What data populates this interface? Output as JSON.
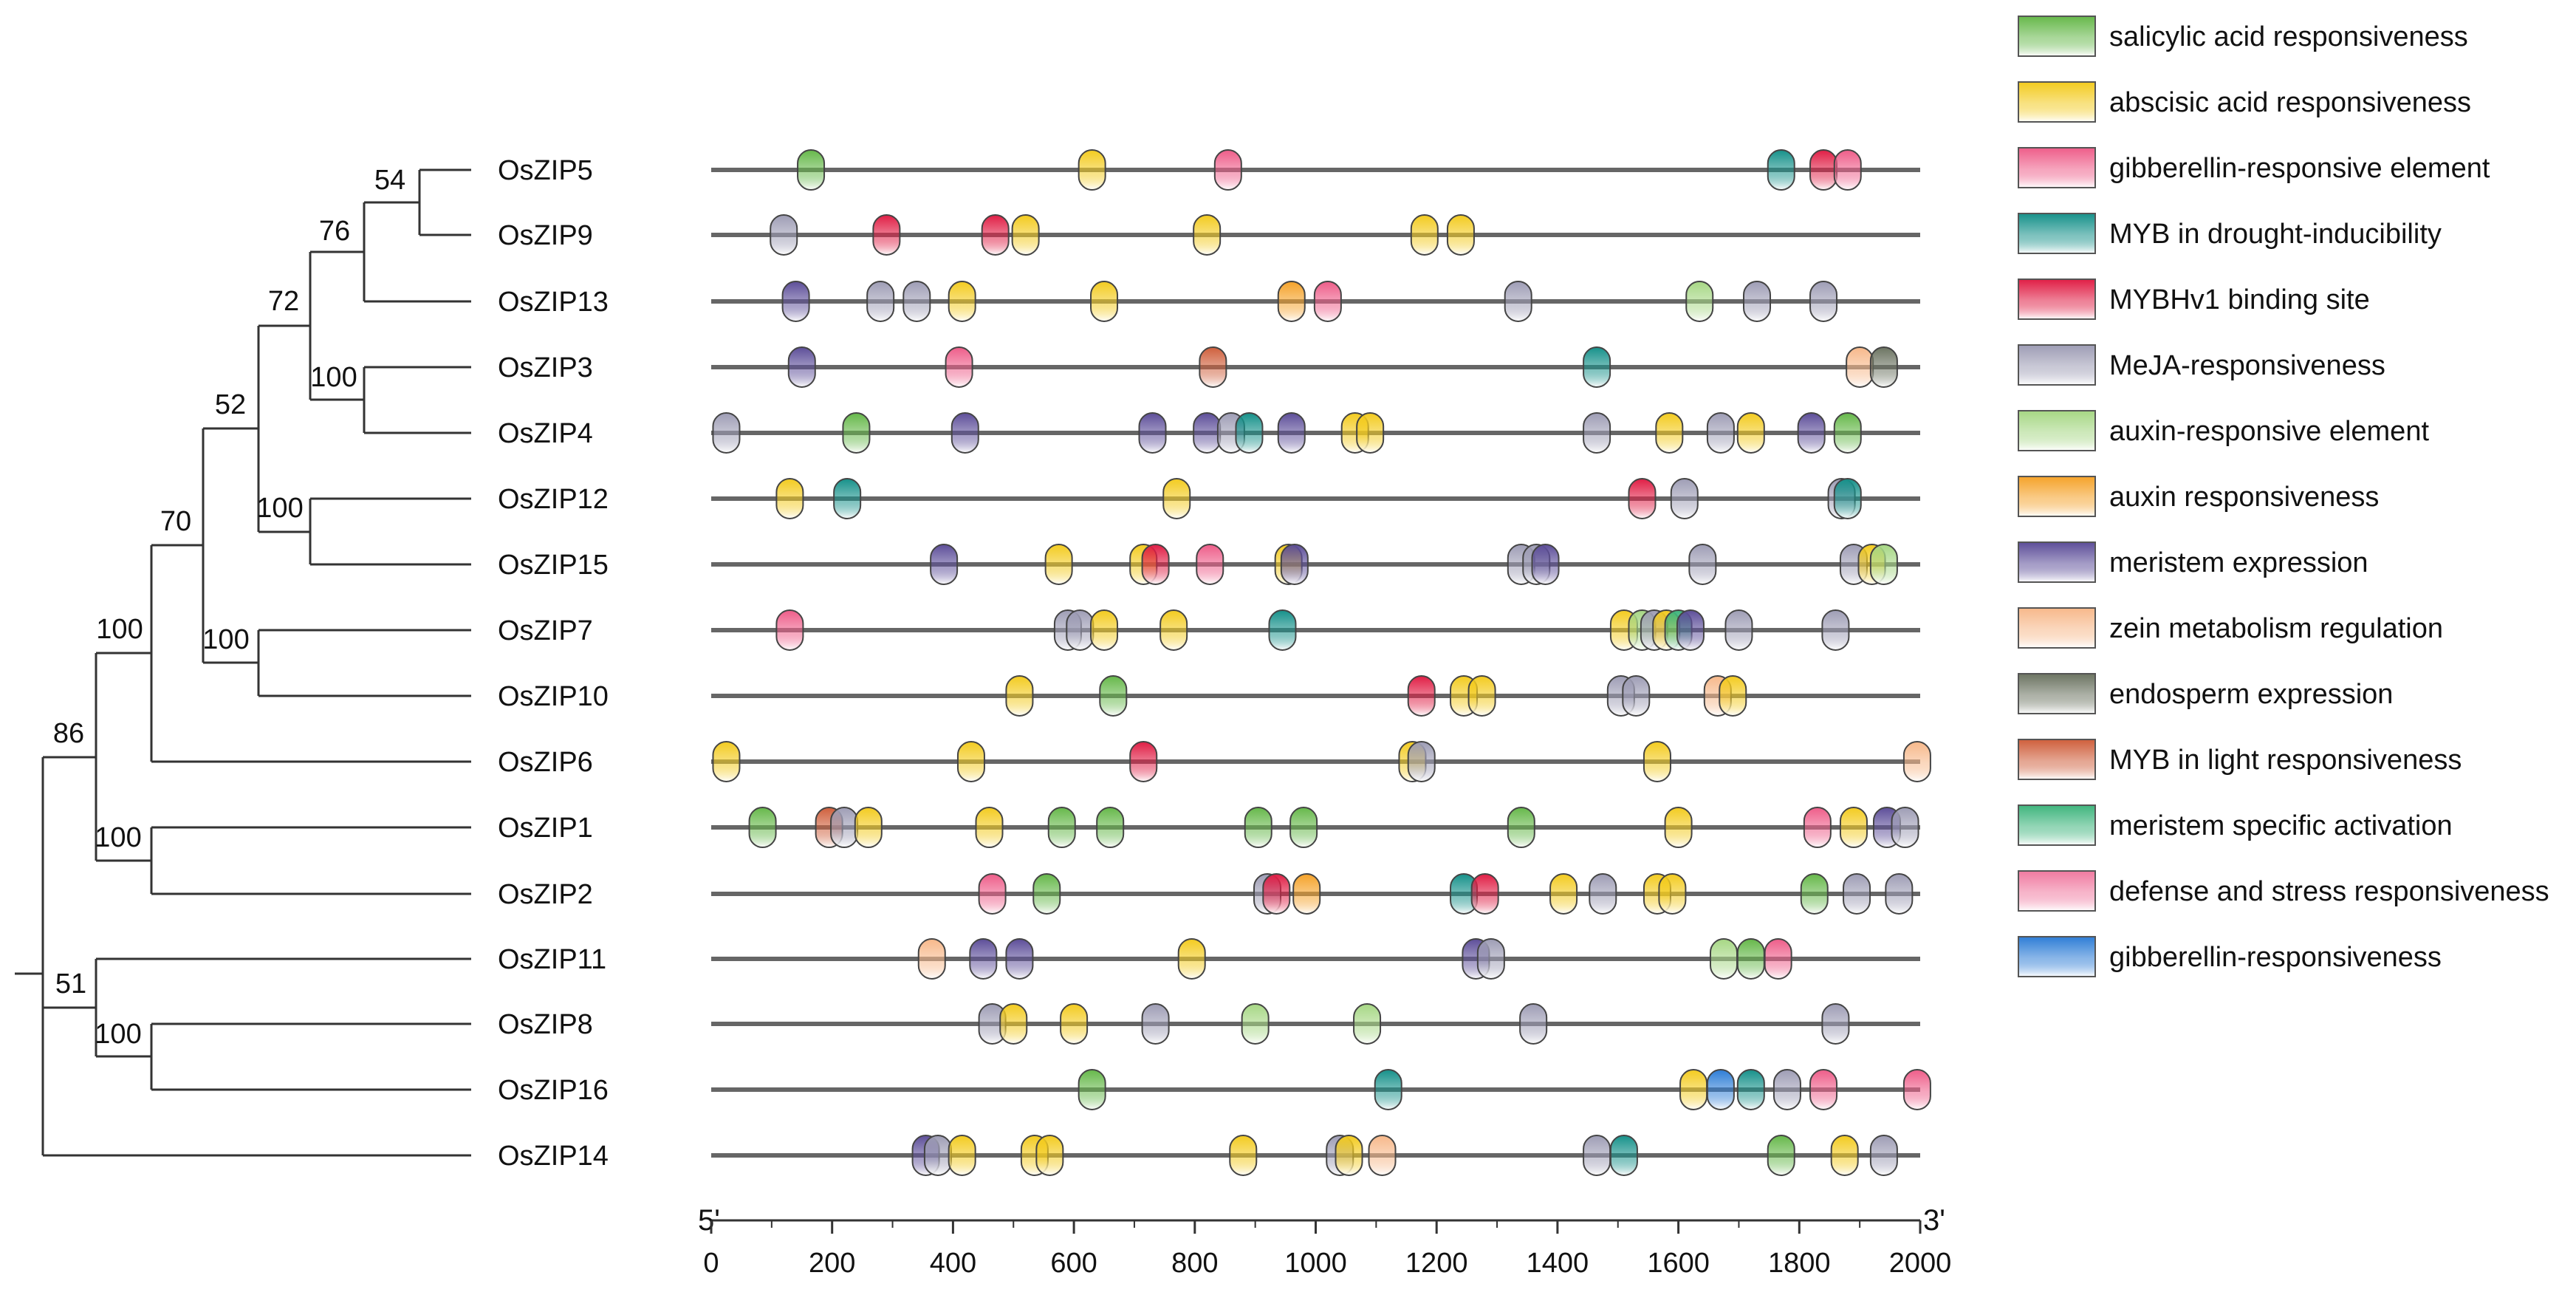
{
  "genes": [
    "OsZIP5",
    "OsZIP9",
    "OsZIP13",
    "OsZIP3",
    "OsZIP4",
    "OsZIP12",
    "OsZIP15",
    "OsZIP7",
    "OsZIP10",
    "OsZIP6",
    "OsZIP1",
    "OsZIP2",
    "OsZIP11",
    "OsZIP8",
    "OsZIP16",
    "OsZIP14"
  ],
  "bootstrap": {
    "OsZIP5_OsZIP9": "54",
    "with_OsZIP13": "76",
    "OsZIP3_OsZIP4": "100",
    "group_5_9_13_3_4": "72",
    "OsZIP12_OsZIP15": "100",
    "upper_group": "52",
    "OsZIP7_OsZIP10": "100",
    "with_7_10": "70",
    "with_OsZIP6": "100",
    "OsZIP1_OsZIP2": "100",
    "ZIP_main": "86",
    "OsZIP8_OsZIP16": "100",
    "with_OsZIP11": "51"
  },
  "axis": {
    "start_label": "5'",
    "end_label": "3'",
    "min": 0,
    "max": 2000,
    "ticks": [
      "0",
      "200",
      "400",
      "600",
      "800",
      "1000",
      "1200",
      "1400",
      "1600",
      "1800",
      "2000"
    ]
  },
  "legend": [
    {
      "key": "sal",
      "label": "salicylic acid responsiveness",
      "color": "#66b84a"
    },
    {
      "key": "aba",
      "label": "abscisic acid responsiveness",
      "color": "#f3cb1f"
    },
    {
      "key": "gib",
      "label": "gibberellin-responsive element",
      "color": "#ee5d89"
    },
    {
      "key": "myb",
      "label": "MYB in drought-inducibility",
      "color": "#16918a"
    },
    {
      "key": "mybh",
      "label": "MYBHv1 binding site",
      "color": "#e01e45"
    },
    {
      "key": "meja",
      "label": "MeJA-responsiveness",
      "color": "#9e9db5"
    },
    {
      "key": "aux",
      "label": "auxin-responsive element",
      "color": "#a6d784"
    },
    {
      "key": "auxr",
      "label": "auxin responsiveness",
      "color": "#f5a229"
    },
    {
      "key": "mer",
      "label": "meristem expression",
      "color": "#5d4e99"
    },
    {
      "key": "zein",
      "label": "zein metabolism regulation",
      "color": "#f7b88a"
    },
    {
      "key": "endo",
      "label": "endosperm expression",
      "color": "#6c7462"
    },
    {
      "key": "mybl",
      "label": "MYB in light responsiveness",
      "color": "#cf5f3c"
    },
    {
      "key": "msa",
      "label": "meristem specific activation",
      "color": "#3fb57d"
    },
    {
      "key": "def",
      "label": "defense and stress responsiveness",
      "color": "#f07aa0"
    },
    {
      "key": "gibr",
      "label": "gibberellin-responsiveness",
      "color": "#2e7dd6"
    }
  ],
  "elements": {
    "OsZIP5": [
      [
        165,
        "sal"
      ],
      [
        630,
        "aba"
      ],
      [
        855,
        "gib"
      ],
      [
        1770,
        "myb"
      ],
      [
        1840,
        "mybh"
      ],
      [
        1880,
        "gib"
      ]
    ],
    "OsZIP9": [
      [
        120,
        "meja"
      ],
      [
        290,
        "mybh"
      ],
      [
        470,
        "mybh"
      ],
      [
        520,
        "aba"
      ],
      [
        820,
        "aba"
      ],
      [
        1180,
        "aba"
      ],
      [
        1240,
        "aba"
      ]
    ],
    "OsZIP13": [
      [
        140,
        "mer"
      ],
      [
        280,
        "meja"
      ],
      [
        340,
        "meja"
      ],
      [
        415,
        "aba"
      ],
      [
        650,
        "aba"
      ],
      [
        960,
        "auxr"
      ],
      [
        1020,
        "gib"
      ],
      [
        1335,
        "meja"
      ],
      [
        1635,
        "aux"
      ],
      [
        1730,
        "meja"
      ],
      [
        1840,
        "meja"
      ]
    ],
    "OsZIP3": [
      [
        150,
        "mer"
      ],
      [
        410,
        "gib"
      ],
      [
        830,
        "mybl"
      ],
      [
        1465,
        "myb"
      ],
      [
        1900,
        "zein"
      ],
      [
        1940,
        "endo"
      ]
    ],
    "OsZIP4": [
      [
        25,
        "meja"
      ],
      [
        240,
        "sal"
      ],
      [
        420,
        "mer"
      ],
      [
        730,
        "mer"
      ],
      [
        820,
        "mer"
      ],
      [
        860,
        "meja"
      ],
      [
        890,
        "myb"
      ],
      [
        960,
        "mer"
      ],
      [
        1065,
        "aba"
      ],
      [
        1090,
        "aba"
      ],
      [
        1465,
        "meja"
      ],
      [
        1585,
        "aba"
      ],
      [
        1670,
        "meja"
      ],
      [
        1720,
        "aba"
      ],
      [
        1820,
        "mer"
      ],
      [
        1880,
        "sal"
      ]
    ],
    "OsZIP12": [
      [
        130,
        "aba"
      ],
      [
        225,
        "myb"
      ],
      [
        770,
        "aba"
      ],
      [
        1540,
        "mybh"
      ],
      [
        1610,
        "meja"
      ],
      [
        1870,
        "meja"
      ],
      [
        1880,
        "myb"
      ]
    ],
    "OsZIP15": [
      [
        385,
        "mer"
      ],
      [
        575,
        "aba"
      ],
      [
        715,
        "aba"
      ],
      [
        735,
        "mybh"
      ],
      [
        825,
        "gib"
      ],
      [
        955,
        "aba"
      ],
      [
        965,
        "mer"
      ],
      [
        1340,
        "meja"
      ],
      [
        1365,
        "meja"
      ],
      [
        1380,
        "mer"
      ],
      [
        1640,
        "meja"
      ],
      [
        1890,
        "meja"
      ],
      [
        1920,
        "aba"
      ],
      [
        1940,
        "aux"
      ]
    ],
    "OsZIP7": [
      [
        130,
        "gib"
      ],
      [
        590,
        "meja"
      ],
      [
        610,
        "meja"
      ],
      [
        650,
        "aba"
      ],
      [
        765,
        "aba"
      ],
      [
        945,
        "myb"
      ],
      [
        1510,
        "aba"
      ],
      [
        1540,
        "aux"
      ],
      [
        1560,
        "meja"
      ],
      [
        1580,
        "aba"
      ],
      [
        1600,
        "msa"
      ],
      [
        1620,
        "mer"
      ],
      [
        1700,
        "meja"
      ],
      [
        1860,
        "meja"
      ]
    ],
    "OsZIP10": [
      [
        510,
        "aba"
      ],
      [
        665,
        "sal"
      ],
      [
        1175,
        "mybh"
      ],
      [
        1245,
        "aba"
      ],
      [
        1275,
        "aba"
      ],
      [
        1505,
        "meja"
      ],
      [
        1530,
        "meja"
      ],
      [
        1665,
        "zein"
      ],
      [
        1690,
        "aba"
      ]
    ],
    "OsZIP6": [
      [
        25,
        "aba"
      ],
      [
        430,
        "aba"
      ],
      [
        715,
        "mybh"
      ],
      [
        1160,
        "aba"
      ],
      [
        1175,
        "meja"
      ],
      [
        1565,
        "aba"
      ],
      [
        1995,
        "zein"
      ]
    ],
    "OsZIP1": [
      [
        85,
        "sal"
      ],
      [
        195,
        "mybl"
      ],
      [
        220,
        "meja"
      ],
      [
        260,
        "aba"
      ],
      [
        460,
        "aba"
      ],
      [
        580,
        "sal"
      ],
      [
        660,
        "sal"
      ],
      [
        905,
        "sal"
      ],
      [
        980,
        "sal"
      ],
      [
        1340,
        "sal"
      ],
      [
        1600,
        "aba"
      ],
      [
        1830,
        "gib"
      ],
      [
        1890,
        "aba"
      ],
      [
        1945,
        "mer"
      ],
      [
        1975,
        "meja"
      ]
    ],
    "OsZIP2": [
      [
        465,
        "gib"
      ],
      [
        555,
        "sal"
      ],
      [
        920,
        "meja"
      ],
      [
        935,
        "mybh"
      ],
      [
        985,
        "auxr"
      ],
      [
        1245,
        "myb"
      ],
      [
        1280,
        "mybh"
      ],
      [
        1410,
        "aba"
      ],
      [
        1475,
        "meja"
      ],
      [
        1565,
        "aba"
      ],
      [
        1590,
        "aba"
      ],
      [
        1825,
        "sal"
      ],
      [
        1895,
        "meja"
      ],
      [
        1965,
        "meja"
      ]
    ],
    "OsZIP11": [
      [
        365,
        "zein"
      ],
      [
        450,
        "mer"
      ],
      [
        510,
        "mer"
      ],
      [
        795,
        "aba"
      ],
      [
        1265,
        "mer"
      ],
      [
        1290,
        "meja"
      ],
      [
        1675,
        "aux"
      ],
      [
        1720,
        "sal"
      ],
      [
        1765,
        "gib"
      ]
    ],
    "OsZIP8": [
      [
        465,
        "meja"
      ],
      [
        500,
        "aba"
      ],
      [
        600,
        "aba"
      ],
      [
        735,
        "meja"
      ],
      [
        900,
        "aux"
      ],
      [
        1085,
        "aux"
      ],
      [
        1360,
        "meja"
      ],
      [
        1860,
        "meja"
      ]
    ],
    "OsZIP16": [
      [
        630,
        "sal"
      ],
      [
        1120,
        "myb"
      ],
      [
        1625,
        "aba"
      ],
      [
        1670,
        "gibr"
      ],
      [
        1720,
        "myb"
      ],
      [
        1780,
        "meja"
      ],
      [
        1840,
        "gib"
      ],
      [
        1995,
        "gib"
      ]
    ],
    "OsZIP14": [
      [
        355,
        "mer"
      ],
      [
        375,
        "meja"
      ],
      [
        415,
        "aba"
      ],
      [
        535,
        "aba"
      ],
      [
        560,
        "aba"
      ],
      [
        880,
        "aba"
      ],
      [
        1040,
        "meja"
      ],
      [
        1055,
        "aba"
      ],
      [
        1110,
        "zein"
      ],
      [
        1465,
        "meja"
      ],
      [
        1510,
        "myb"
      ],
      [
        1770,
        "sal"
      ],
      [
        1875,
        "aba"
      ],
      [
        1940,
        "meja"
      ]
    ]
  }
}
